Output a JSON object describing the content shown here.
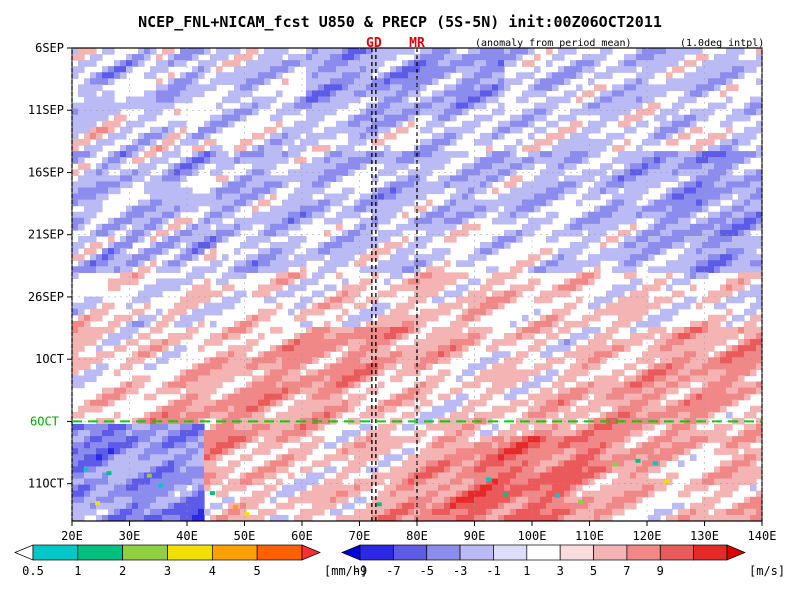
{
  "chart_data": {
    "type": "heatmap",
    "title": "NCEP_FNL+NICAM_fcst U850 & PRECP (5S-5N) init:00Z06OCT2011",
    "subtitle": "(anomaly from period mean)",
    "note": "(1.0deg intpl)",
    "x_axis": {
      "ticks": [
        "20E",
        "30E",
        "40E",
        "50E",
        "60E",
        "70E",
        "80E",
        "90E",
        "100E",
        "110E",
        "120E",
        "130E",
        "140E"
      ],
      "range": [
        20,
        140
      ]
    },
    "y_axis": {
      "ticks": [
        "6SEP",
        "11SEP",
        "16SEP",
        "21SEP",
        "26SEP",
        "1OCT",
        "6OCT",
        "11OCT"
      ],
      "day_range": [
        0,
        38
      ]
    },
    "markers": [
      {
        "label": "GD",
        "lon": 72.5
      },
      {
        "label": "MR",
        "lon": 80
      }
    ],
    "init_line": {
      "label": "6OCT",
      "color": "#00cc00"
    },
    "fields": {
      "u850_wind_anomaly": {
        "unit": "[m/s]",
        "levels": [
          "-9",
          "-7",
          "-5",
          "-3",
          "-1",
          "1",
          "3",
          "5",
          "7",
          "9"
        ],
        "colors": [
          "#0000dd",
          "#2a2ae6",
          "#5c5ce8",
          "#8c8cee",
          "#babaf5",
          "#dedefb",
          "#ffffff",
          "#fbdcdc",
          "#f5b4b4",
          "#f08888",
          "#eb5a5a",
          "#e62a2a",
          "#dc0000"
        ]
      },
      "precipitation": {
        "unit": "[mm/h]",
        "levels": [
          "0.5",
          "1",
          "2",
          "3",
          "4",
          "5"
        ],
        "colors": [
          "#ffffff",
          "#00c8c8",
          "#00c080",
          "#90d040",
          "#f0e000",
          "#ffa000",
          "#ff6000",
          "#ff3030"
        ]
      }
    }
  }
}
